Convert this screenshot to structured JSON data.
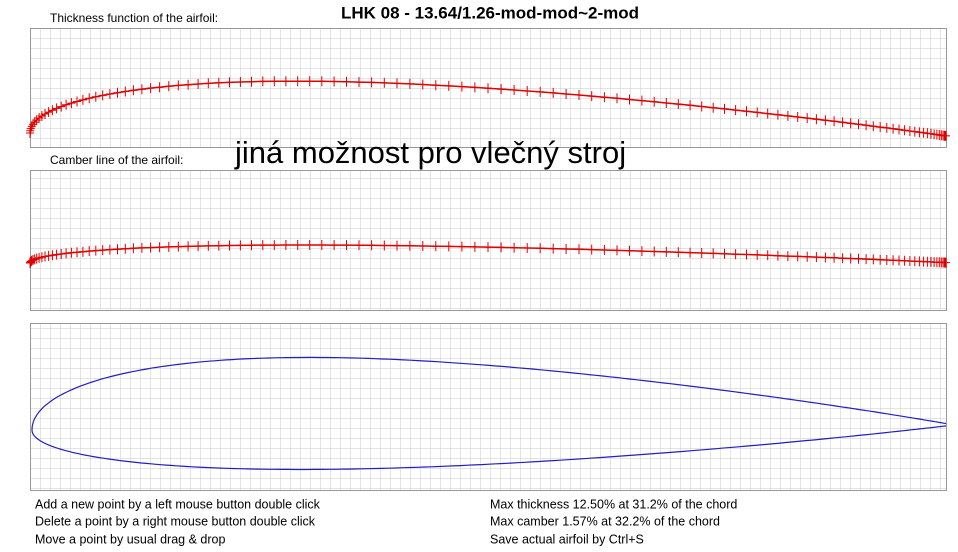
{
  "header": {
    "title": "LHK  08 - 13.64/1.26-mod-mod~2-mod",
    "thickness_label": "Thickness function of the airfoil:",
    "camber_label": "Camber line of the airfoil:",
    "note": "jiná možnost pro vlečný stroj"
  },
  "help": {
    "left": [
      "Add a new point by a left mouse button double click",
      "Delete a point by a right mouse button double click",
      "Move a point by usual drag & drop"
    ],
    "right": [
      "Max thickness 12.50% at 31.2% of the chord",
      "Max camber 1.57% at 32.2% of the chord",
      "Save actual airfoil by Ctrl+S"
    ]
  }
}
